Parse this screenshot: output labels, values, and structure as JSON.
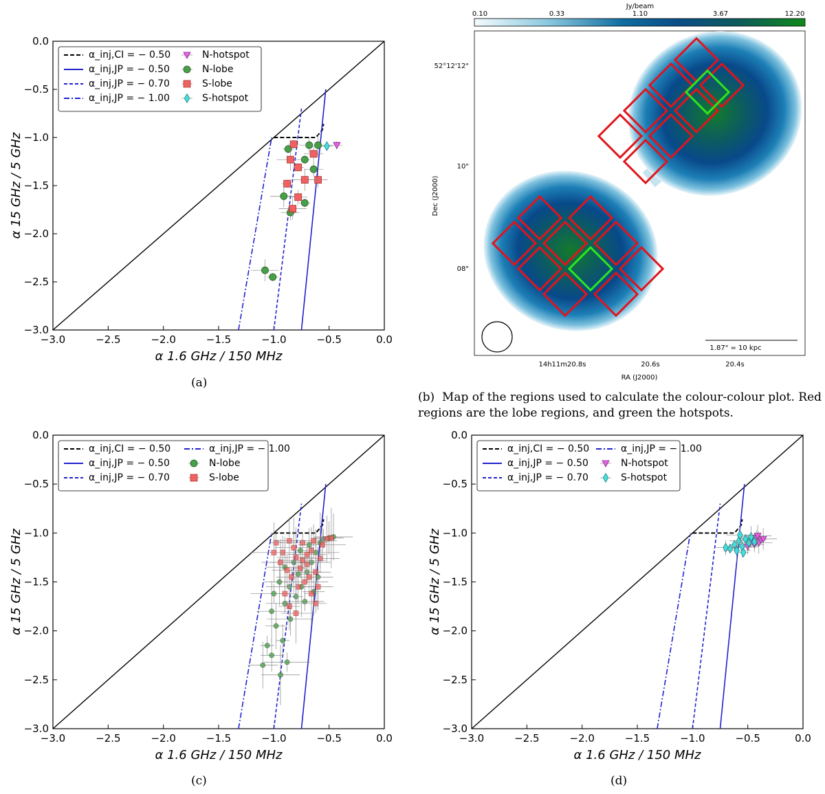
{
  "panels": [
    {
      "id": "a",
      "caption": "(a)",
      "legend": {
        "entries": [
          "α_inj,CI = − 0.50",
          "α_inj,JP = − 0.50",
          "α_inj,JP = − 0.70",
          "α_inj,JP = − 1.00",
          "N-hotspot",
          "N-lobe",
          "S-lobe",
          "S-hotspot"
        ]
      },
      "chart_data": {
        "type": "scatter",
        "xlabel": "α 1.6 GHz / 150 MHz",
        "ylabel": "α 15 GHz / 5 GHz",
        "xlim": [
          -3.0,
          0.0
        ],
        "ylim": [
          -3.0,
          0.0
        ],
        "xticks": [
          "−3.0",
          "−2.5",
          "−2.0",
          "−1.5",
          "−1.0",
          "−0.5",
          "0.0"
        ],
        "yticks": [
          "−3.0",
          "−2.5",
          "−2.0",
          "−1.5",
          "−1.0",
          "−0.5",
          "0.0"
        ],
        "series": [
          {
            "name": "N-lobe",
            "points": [
              [
                -0.87,
                -1.12
              ],
              [
                -0.68,
                -1.08
              ],
              [
                -0.6,
                -1.08
              ],
              [
                -0.72,
                -1.23
              ],
              [
                -0.64,
                -1.33
              ],
              [
                -0.91,
                -1.61
              ],
              [
                -0.72,
                -1.68
              ],
              [
                -0.85,
                -1.78
              ],
              [
                -1.08,
                -2.38
              ],
              [
                -1.01,
                -2.45
              ]
            ]
          },
          {
            "name": "S-lobe",
            "points": [
              [
                -0.82,
                -1.07
              ],
              [
                -0.64,
                -1.17
              ],
              [
                -0.85,
                -1.23
              ],
              [
                -0.78,
                -1.31
              ],
              [
                -0.6,
                -1.44
              ],
              [
                -0.72,
                -1.44
              ],
              [
                -0.88,
                -1.48
              ],
              [
                -0.78,
                -1.62
              ],
              [
                -0.83,
                -1.74
              ]
            ]
          },
          {
            "name": "N-hotspot",
            "points": [
              [
                -0.43,
                -1.08
              ]
            ]
          },
          {
            "name": "S-hotspot",
            "points": [
              [
                -0.52,
                -1.09
              ]
            ]
          }
        ]
      }
    },
    {
      "id": "c",
      "caption": "(c)",
      "legend": {
        "entries": [
          "α_inj,CI = − 0.50",
          "α_inj,JP = − 0.50",
          "α_inj,JP = − 0.70",
          "α_inj,JP = − 1.00",
          "N-lobe",
          "S-lobe"
        ]
      },
      "chart_data": {
        "type": "scatter",
        "xlabel": "α 1.6 GHz / 150 MHz",
        "ylabel": "α 15 GHz / 5 GHz",
        "xlim": [
          -3.0,
          0.0
        ],
        "ylim": [
          -3.0,
          0.0
        ],
        "xticks": [
          "−3.0",
          "−2.5",
          "−2.0",
          "−1.5",
          "−1.0",
          "−0.5",
          "0.0"
        ],
        "yticks": [
          "−3.0",
          "−2.5",
          "−2.0",
          "−1.5",
          "−1.0",
          "−0.5",
          "0.0"
        ],
        "series": [
          {
            "name": "N-lobe",
            "points": [
              [
                -1.06,
                -2.15
              ],
              [
                -1.02,
                -2.25
              ],
              [
                -1.1,
                -2.35
              ],
              [
                -0.94,
                -2.45
              ],
              [
                -0.88,
                -2.32
              ],
              [
                -0.92,
                -2.1
              ],
              [
                -0.98,
                -1.95
              ],
              [
                -1.02,
                -1.8
              ],
              [
                -0.9,
                -1.72
              ],
              [
                -0.85,
                -1.88
              ],
              [
                -0.8,
                -1.65
              ],
              [
                -0.75,
                -1.55
              ],
              [
                -0.7,
                -1.4
              ],
              [
                -0.66,
                -1.3
              ],
              [
                -0.62,
                -1.2
              ],
              [
                -0.58,
                -1.1
              ],
              [
                -0.55,
                -1.06
              ],
              [
                -0.5,
                -1.05
              ],
              [
                -0.46,
                -1.04
              ],
              [
                -0.82,
                -1.3
              ],
              [
                -0.76,
                -1.18
              ],
              [
                -0.68,
                -1.12
              ],
              [
                -0.95,
                -1.5
              ],
              [
                -0.9,
                -1.35
              ],
              [
                -1.0,
                -1.62
              ],
              [
                -0.78,
                -1.42
              ],
              [
                -0.64,
                -1.6
              ],
              [
                -0.6,
                -1.45
              ],
              [
                -0.72,
                -1.7
              ],
              [
                -0.86,
                -1.55
              ]
            ]
          },
          {
            "name": "S-lobe",
            "points": [
              [
                -0.98,
                -1.1
              ],
              [
                -0.92,
                -1.2
              ],
              [
                -0.86,
                -1.08
              ],
              [
                -0.8,
                -1.25
              ],
              [
                -0.74,
                -1.1
              ],
              [
                -0.7,
                -1.32
              ],
              [
                -0.66,
                -1.18
              ],
              [
                -0.62,
                -1.4
              ],
              [
                -0.58,
                -1.26
              ],
              [
                -0.56,
                -1.12
              ],
              [
                -0.52,
                -1.06
              ],
              [
                -0.48,
                -1.05
              ],
              [
                -0.84,
                -1.45
              ],
              [
                -0.78,
                -1.55
              ],
              [
                -0.72,
                -1.5
              ],
              [
                -0.66,
                -1.62
              ],
              [
                -0.62,
                -1.72
              ],
              [
                -0.88,
                -1.38
              ],
              [
                -0.94,
                -1.3
              ],
              [
                -1.0,
                -1.2
              ],
              [
                -0.76,
                -1.36
              ],
              [
                -0.68,
                -1.45
              ],
              [
                -0.6,
                -1.55
              ],
              [
                -0.82,
                -1.15
              ],
              [
                -0.74,
                -1.28
              ],
              [
                -0.9,
                -1.62
              ],
              [
                -0.86,
                -1.75
              ],
              [
                -0.8,
                -1.82
              ],
              [
                -0.7,
                -1.22
              ],
              [
                -0.64,
                -1.08
              ]
            ]
          }
        ]
      }
    },
    {
      "id": "d",
      "caption": "(d)",
      "legend": {
        "entries": [
          "α_inj,CI = − 0.50",
          "α_inj,JP = − 0.50",
          "α_inj,JP = − 0.70",
          "α_inj,JP = − 1.00",
          "N-hotspot",
          "S-hotspot"
        ]
      },
      "chart_data": {
        "type": "scatter",
        "xlabel": "α 1.6 GHz / 150 MHz",
        "ylabel": "α 15 GHz / 5 GHz",
        "xlim": [
          -3.0,
          0.0
        ],
        "ylim": [
          -3.0,
          0.0
        ],
        "xticks": [
          "−3.0",
          "−2.5",
          "−2.0",
          "−1.5",
          "−1.0",
          "−0.5",
          "0.0"
        ],
        "yticks": [
          "−3.0",
          "−2.5",
          "−2.0",
          "−1.5",
          "−1.0",
          "−0.5",
          "0.0"
        ],
        "series": [
          {
            "name": "N-hotspot",
            "points": [
              [
                -0.45,
                -1.08
              ],
              [
                -0.42,
                -1.05
              ],
              [
                -0.4,
                -1.1
              ],
              [
                -0.38,
                -1.07
              ],
              [
                -0.44,
                -1.12
              ],
              [
                -0.36,
                -1.06
              ],
              [
                -0.48,
                -1.1
              ],
              [
                -0.5,
                -1.14
              ],
              [
                -0.41,
                -1.03
              ]
            ]
          },
          {
            "name": "S-hotspot",
            "points": [
              [
                -0.62,
                -1.12
              ],
              [
                -0.58,
                -1.08
              ],
              [
                -0.55,
                -1.14
              ],
              [
                -0.52,
                -1.06
              ],
              [
                -0.49,
                -1.1
              ],
              [
                -0.47,
                -1.04
              ],
              [
                -0.66,
                -1.16
              ],
              [
                -0.7,
                -1.15
              ],
              [
                -0.6,
                -1.18
              ],
              [
                -0.54,
                -1.2
              ],
              [
                -0.44,
                -1.09
              ],
              [
                -0.57,
                -1.02
              ]
            ]
          }
        ]
      }
    }
  ],
  "model_curves": {
    "ci": [
      [
        -1.0,
        -1.0
      ],
      [
        -0.62,
        -1.0
      ],
      [
        -0.56,
        -0.92
      ],
      [
        -0.55,
        -0.86
      ]
    ],
    "jp050": [
      [
        -0.75,
        -3.0
      ],
      [
        -0.53,
        -0.5
      ]
    ],
    "jp070": [
      [
        -1.0,
        -3.0
      ],
      [
        -0.75,
        -0.7
      ]
    ],
    "jp100": [
      [
        -1.32,
        -3.0
      ],
      [
        -1.02,
        -1.0
      ]
    ]
  },
  "map": {
    "colorbar_label": "Jy/beam",
    "colorbar_ticks": [
      "0.10",
      "0.33",
      "1.10",
      "3.67",
      "12.20"
    ],
    "dec_label": "Dec (J2000)",
    "ra_label": "RA (J2000)",
    "dec_ticks": [
      "52°12'12\"",
      "10\"",
      "08\""
    ],
    "ra_tick_1": "14h11m20.8s",
    "ra_tick_2": "20.6s",
    "ra_tick_3": "20.4s",
    "scalebar": "1.87\" = 10 kpc",
    "caption_label": "(b)",
    "caption": "Map of the regions used to calculate the colour-colour plot. Red regions are the lobe regions, and green the hotspots."
  }
}
